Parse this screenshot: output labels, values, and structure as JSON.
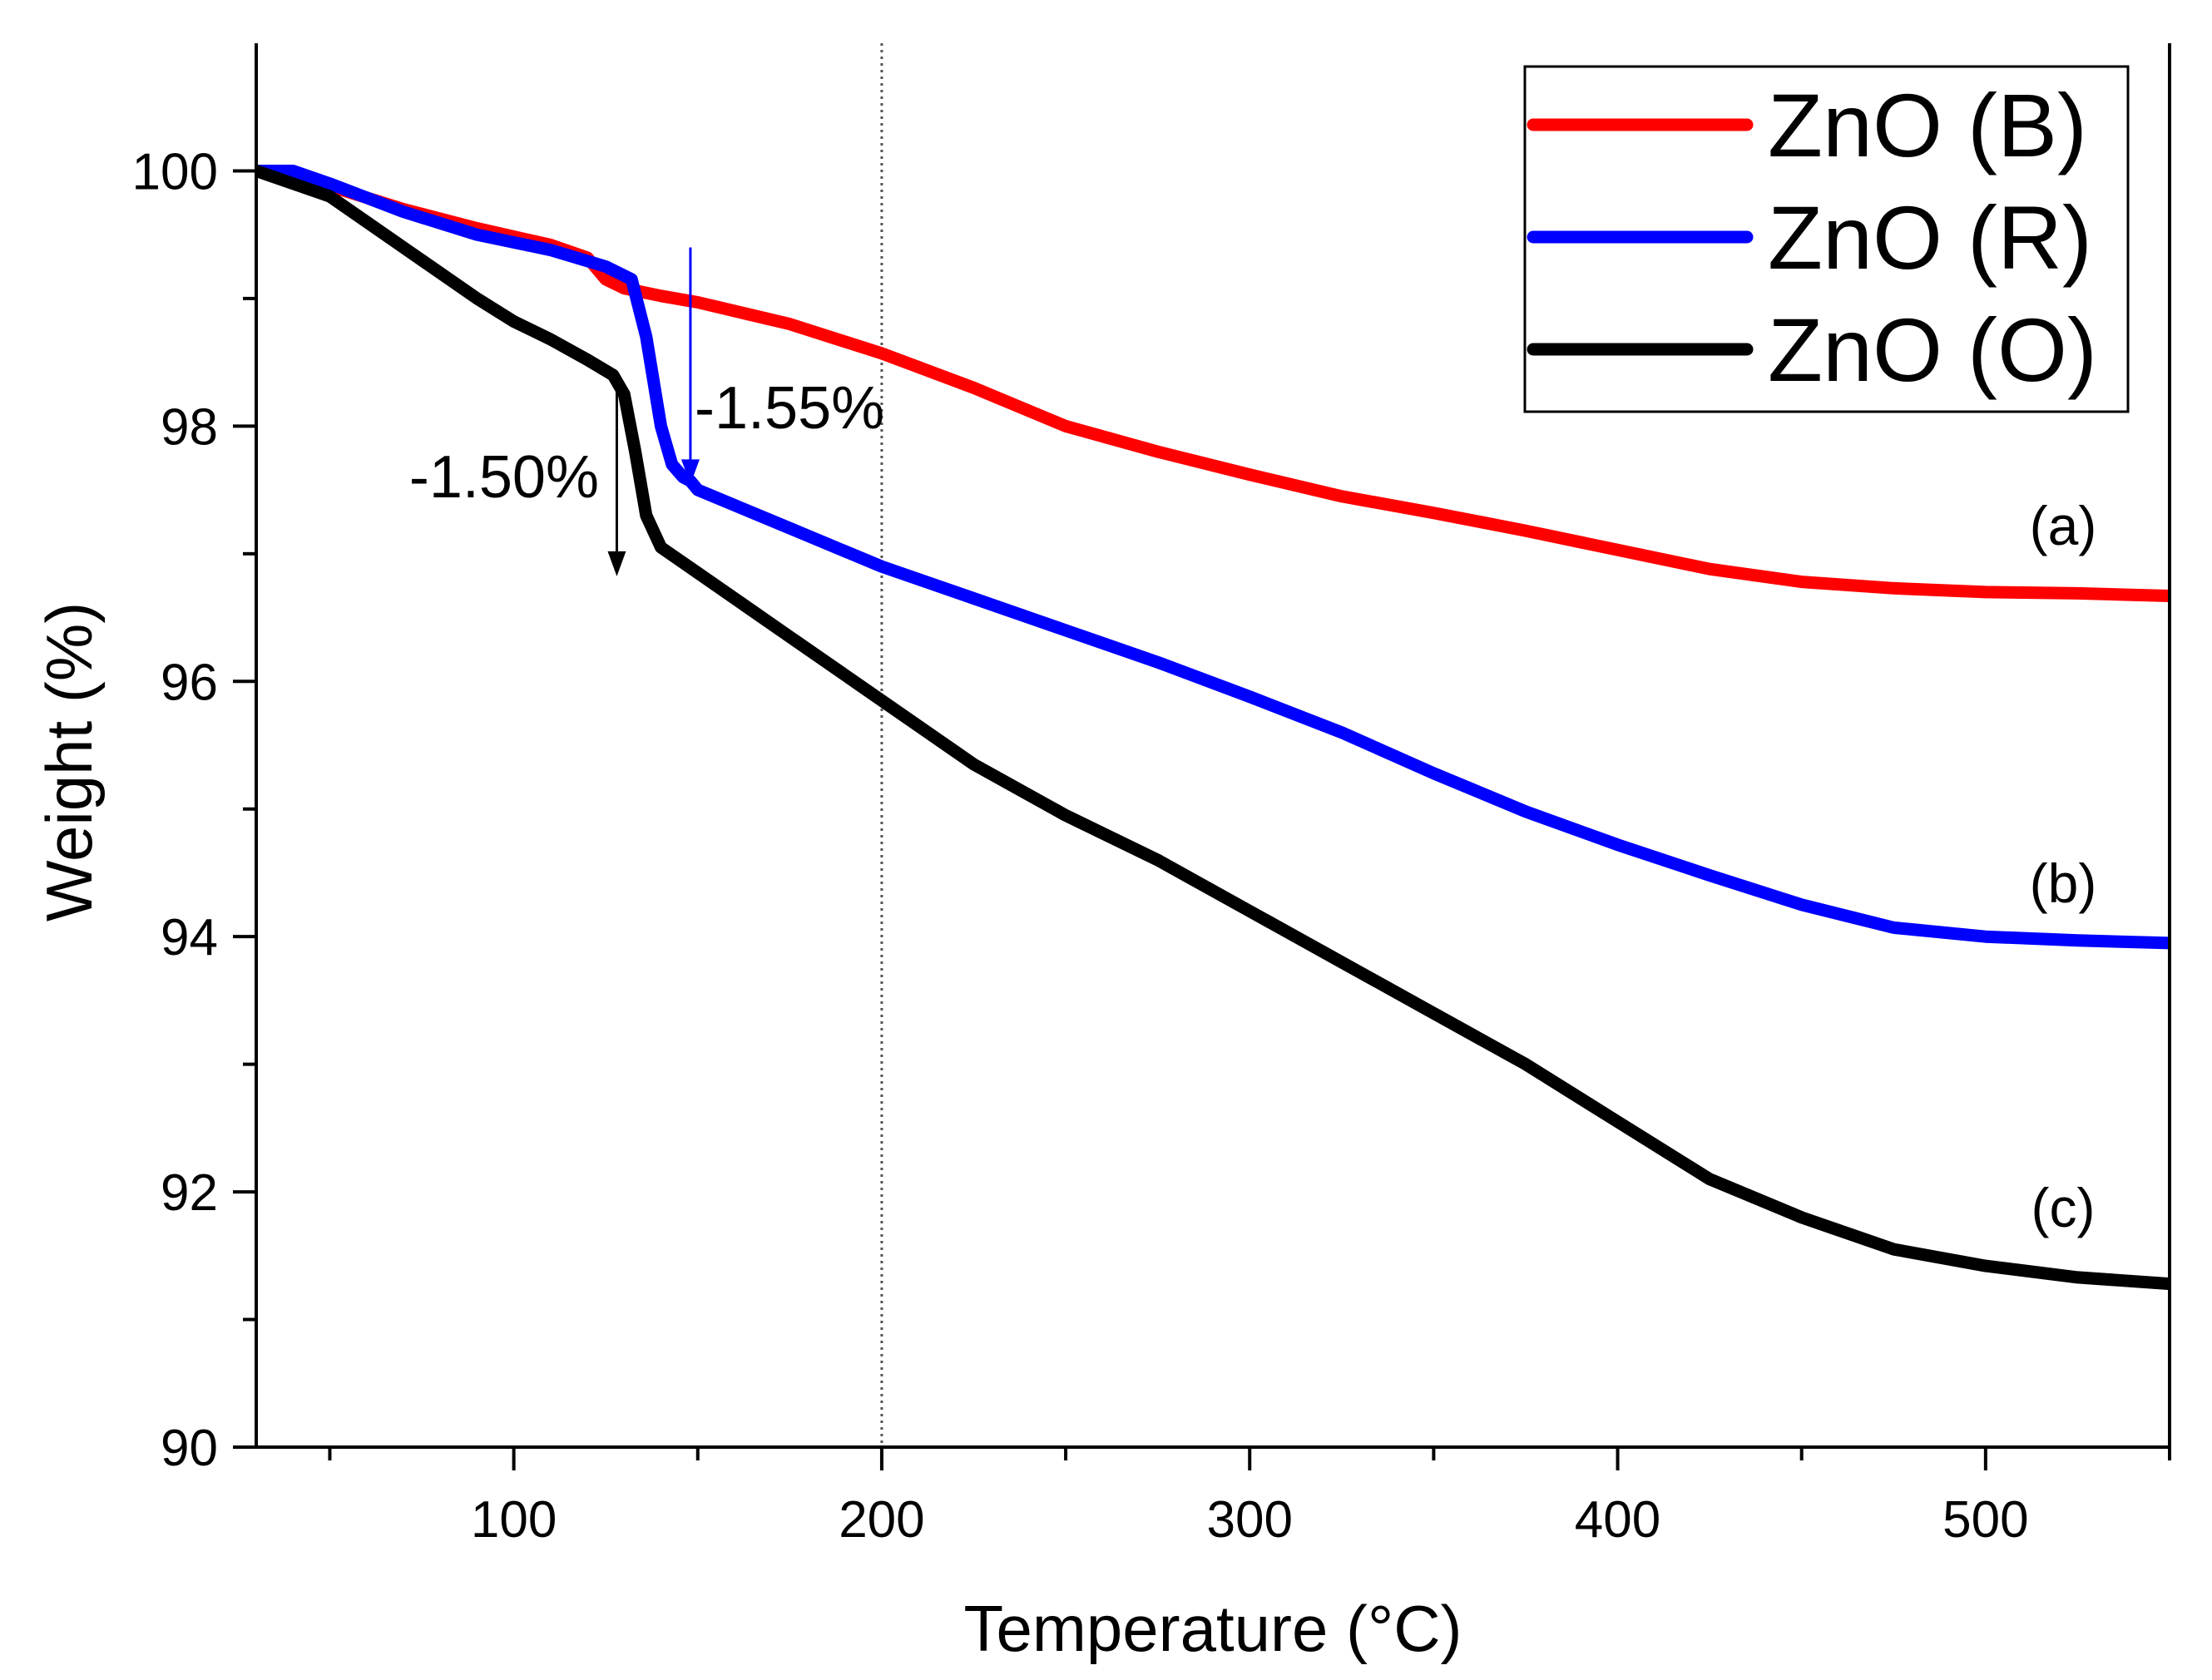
{
  "chart_data": {
    "type": "line",
    "title": "",
    "xlabel": "Temperature (°C)",
    "ylabel": "Weight (%)",
    "xlim": [
      30,
      550
    ],
    "ylim": [
      90,
      101
    ],
    "xticks": [
      100,
      200,
      300,
      400,
      500
    ],
    "yticks": [
      90,
      92,
      94,
      96,
      98,
      100
    ],
    "reference_line_x": 200,
    "legend_position": "top-right",
    "series": [
      {
        "name": "ZnO (B)",
        "tag": "(a)",
        "color": "#ff0000",
        "x": [
          30,
          50,
          70,
          90,
          110,
          120,
          125,
          130,
          140,
          150,
          175,
          200,
          225,
          250,
          275,
          300,
          325,
          350,
          375,
          400,
          425,
          450,
          475,
          500,
          525,
          550
        ],
        "y": [
          100,
          99.88,
          99.7,
          99.55,
          99.42,
          99.32,
          99.15,
          99.08,
          99.02,
          98.97,
          98.8,
          98.57,
          98.3,
          98.0,
          97.8,
          97.62,
          97.45,
          97.32,
          97.18,
          97.03,
          96.88,
          96.78,
          96.73,
          96.7,
          96.69,
          96.67
        ]
      },
      {
        "name": "ZnO (R)",
        "tag": "(b)",
        "color": "#0000ff",
        "x": [
          30,
          40,
          50,
          70,
          90,
          110,
          125,
          132,
          136,
          140,
          143,
          146,
          148,
          150,
          175,
          200,
          225,
          250,
          275,
          300,
          325,
          350,
          375,
          400,
          425,
          450,
          475,
          500,
          525,
          550
        ],
        "y": [
          100,
          100.0,
          99.9,
          99.68,
          99.5,
          99.38,
          99.25,
          99.15,
          98.7,
          98.0,
          97.7,
          97.6,
          97.57,
          97.5,
          97.2,
          96.9,
          96.65,
          96.4,
          96.15,
          95.88,
          95.6,
          95.28,
          94.98,
          94.72,
          94.48,
          94.25,
          94.07,
          94.0,
          93.97,
          93.95
        ]
      },
      {
        "name": "ZnO (O)",
        "tag": "(c)",
        "color": "#000000",
        "x": [
          30,
          50,
          70,
          90,
          100,
          110,
          120,
          127,
          130,
          133,
          136,
          140,
          145,
          150,
          175,
          200,
          225,
          250,
          275,
          300,
          325,
          350,
          375,
          400,
          425,
          450,
          475,
          500,
          525,
          550
        ],
        "y": [
          100,
          99.8,
          99.4,
          99.0,
          98.82,
          98.68,
          98.52,
          98.4,
          98.25,
          97.8,
          97.3,
          97.05,
          96.95,
          96.85,
          96.35,
          95.85,
          95.35,
          94.95,
          94.6,
          94.2,
          93.8,
          93.4,
          93.0,
          92.55,
          92.1,
          91.8,
          91.55,
          91.42,
          91.33,
          91.28
        ]
      }
    ],
    "annotations": [
      {
        "text": "-1.55%",
        "arrow_x": 148,
        "arrow_from_y": 99.4,
        "arrow_to_y": 97.57,
        "color": "#0000ff"
      },
      {
        "text": "-1.50%",
        "arrow_x": 128,
        "arrow_from_y": 98.4,
        "arrow_to_y": 96.85,
        "color": "#000000"
      }
    ]
  }
}
